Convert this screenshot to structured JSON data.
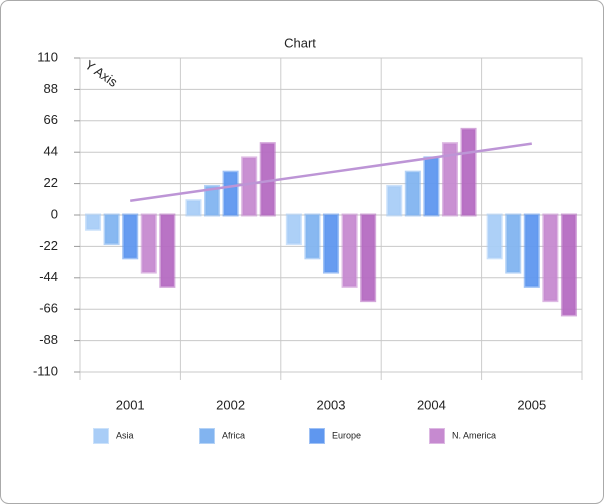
{
  "chart_data": {
    "type": "bar",
    "title": "Chart",
    "y_label": "Y Axis",
    "categories": [
      "2001",
      "2002",
      "2003",
      "2004",
      "2005"
    ],
    "series": [
      {
        "name": "Asia",
        "color": "#a9cdf7",
        "values": [
          -10,
          10,
          -20,
          20,
          -30
        ]
      },
      {
        "name": "Africa",
        "color": "#82b4f0",
        "values": [
          -20,
          20,
          -30,
          30,
          -40
        ]
      },
      {
        "name": "Europe",
        "color": "#5f97ef",
        "values": [
          -30,
          30,
          -40,
          40,
          -50
        ]
      },
      {
        "name": "N. America",
        "color": "#c68ad0",
        "values": [
          -40,
          40,
          -50,
          50,
          -60
        ]
      },
      {
        "color": "#b56cc2",
        "values": [
          -50,
          50,
          -60,
          60,
          -70
        ]
      }
    ],
    "line_series": [
      {
        "color": "#bd95d6",
        "values": [
          10,
          20,
          30,
          40,
          50
        ]
      }
    ],
    "ylim": [
      -110,
      110
    ],
    "yticks": [
      -110,
      -88,
      -66,
      -44,
      -22,
      0,
      22,
      44,
      66,
      88,
      110
    ],
    "grid": true
  }
}
